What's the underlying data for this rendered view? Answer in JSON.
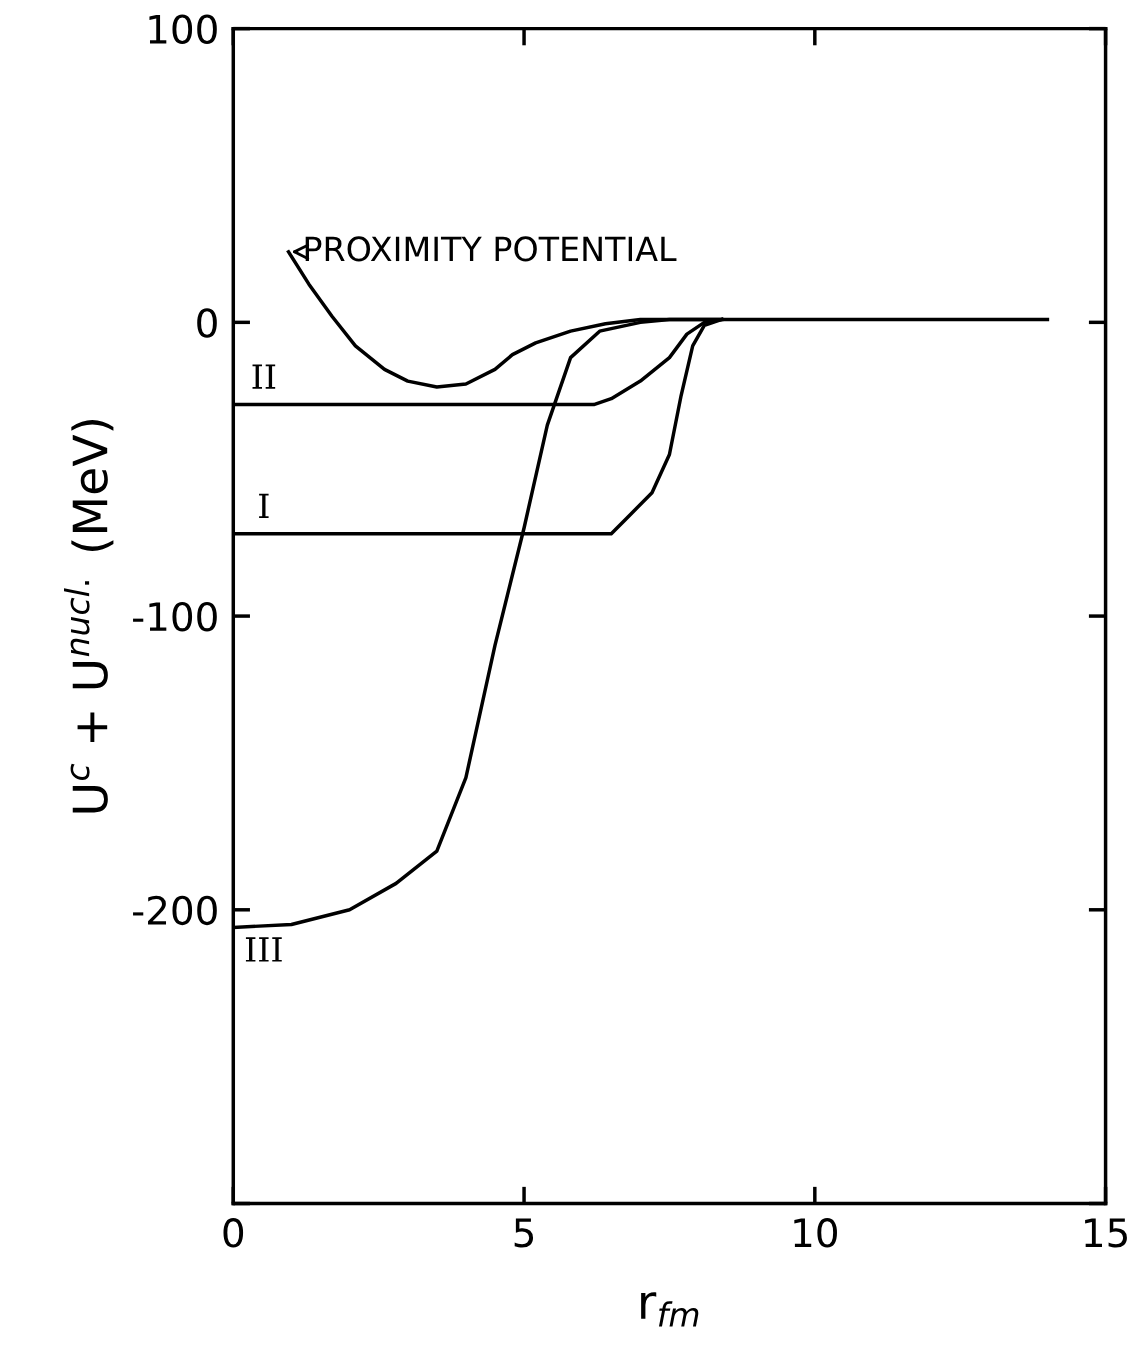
{
  "chart_data": {
    "type": "line",
    "xlabel": "r$_{fm}$",
    "ylabel": "U$^{c}$ + U$^{nucl.}$ (MeV)",
    "xlim": [
      0,
      15
    ],
    "xticks": [
      0,
      5,
      10,
      15
    ],
    "ylim": [
      -300,
      100
    ],
    "yticks": [
      {
        "value": -300,
        "label": null
      },
      {
        "value": -200,
        "label": "-200"
      },
      {
        "value": -100,
        "label": "-100"
      },
      0,
      100
    ],
    "grid": false,
    "marker": "none",
    "line_style": "solid",
    "series": [
      {
        "color": "#000000",
        "x": [
          0.95,
          1.3,
          1.7,
          2.1,
          2.6,
          3.0,
          3.5,
          4.0,
          4.5,
          4.8,
          5.2,
          5.8,
          6.4,
          7.0,
          7.5,
          8.5,
          14.0
        ],
        "values": [
          24,
          13,
          2,
          -8,
          -16,
          -20,
          -22,
          -21,
          -16,
          -11,
          -7,
          -3,
          -0.5,
          1,
          1,
          1,
          1
        ]
      },
      {
        "color": "#000000",
        "x": [
          0,
          6.2,
          6.5,
          7.0,
          7.5,
          7.8,
          8.1,
          8.4
        ],
        "values": [
          -28,
          -28,
          -26,
          -20,
          -12,
          -4,
          0,
          1
        ]
      },
      {
        "color": "#000000",
        "x": [
          0,
          6.5,
          6.8,
          7.2,
          7.5,
          7.7,
          7.9,
          8.1,
          8.4
        ],
        "values": [
          -72,
          -72,
          -66,
          -58,
          -45,
          -25,
          -8,
          -1,
          1
        ]
      },
      {
        "color": "#000000",
        "x": [
          0,
          1,
          2,
          2.8,
          3.5,
          4.0,
          4.5,
          5.0,
          5.4,
          5.8,
          6.3,
          7.0,
          7.5,
          8.4
        ],
        "values": [
          -206,
          -205,
          -200,
          -191,
          -180,
          -155,
          -110,
          -70,
          -35,
          -12,
          -3,
          0,
          1,
          1
        ]
      }
    ],
    "annotations": [
      "PROXIMITY POTENTIAL",
      "II",
      "I",
      "III"
    ]
  }
}
